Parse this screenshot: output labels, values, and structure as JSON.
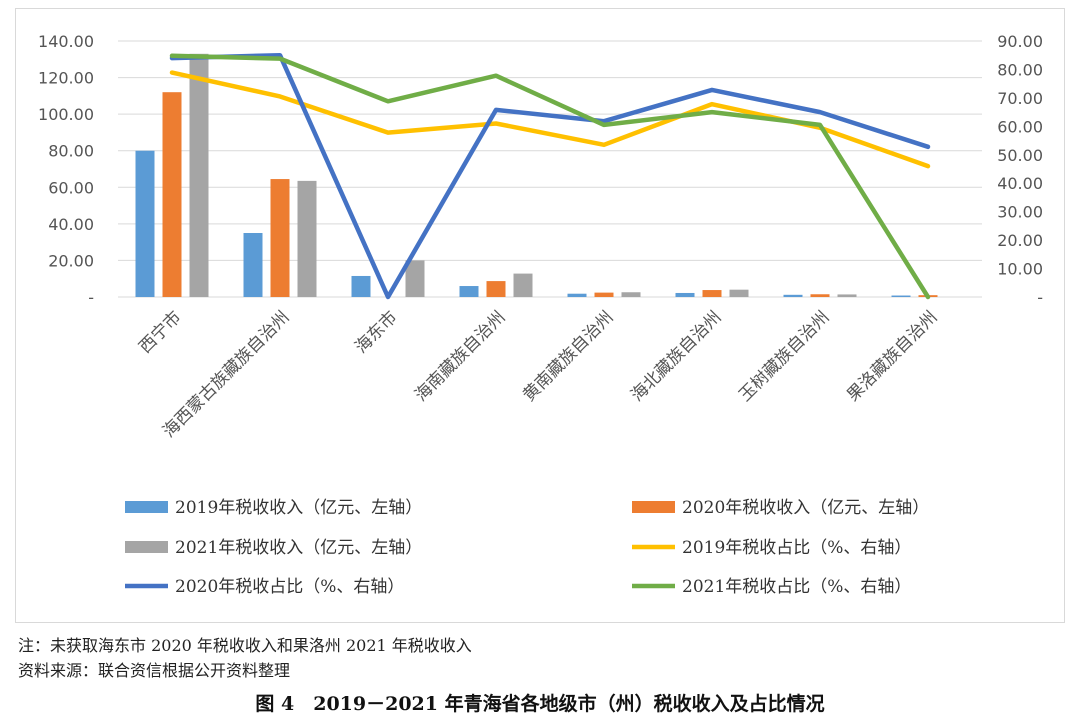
{
  "chart_data": {
    "type": "bar+line",
    "categories": [
      "西宁市",
      "海西蒙古族藏族自治州",
      "海东市",
      "海南藏族自治州",
      "黄南藏族自治州",
      "海北藏族自治州",
      "玉树藏族自治州",
      "果洛藏族自治州"
    ],
    "left_axis": {
      "ylim": [
        0,
        140
      ],
      "ticks": [
        "-",
        "20.00",
        "40.00",
        "60.00",
        "80.00",
        "100.00",
        "120.00",
        "140.00"
      ]
    },
    "right_axis": {
      "ylim": [
        0,
        90
      ],
      "ticks": [
        "-",
        "10.00",
        "20.00",
        "30.00",
        "40.00",
        "50.00",
        "60.00",
        "70.00",
        "80.00",
        "90.00"
      ]
    },
    "bar_series": [
      {
        "name": "2019年税收收入（亿元、左轴）",
        "color": "#5b9bd5",
        "values": [
          80.0,
          35.0,
          11.5,
          6.0,
          1.8,
          2.2,
          1.2,
          0.8
        ]
      },
      {
        "name": "2020年税收收入（亿元、左轴）",
        "color": "#ed7d31",
        "values": [
          112.0,
          64.5,
          null,
          8.7,
          2.4,
          3.8,
          1.5,
          1.0
        ]
      },
      {
        "name": "2021年税收收入（亿元、左轴）",
        "color": "#a5a5a5",
        "values": [
          133.0,
          63.5,
          20.0,
          12.8,
          2.6,
          4.0,
          1.4,
          null
        ]
      }
    ],
    "line_series": [
      {
        "name": "2019年税收占比（%、右轴）",
        "color": "#ffc000",
        "values": [
          78.9,
          70.5,
          57.8,
          61.0,
          53.5,
          67.8,
          59.5,
          46.0
        ]
      },
      {
        "name": "2020年税收占比（%、右轴）",
        "color": "#4472c4",
        "values": [
          84.0,
          85.0,
          0,
          65.8,
          61.8,
          72.8,
          65.0,
          52.8
        ]
      },
      {
        "name": "2021年税收占比（%、右轴）",
        "color": "#70ad47",
        "values": [
          84.8,
          83.8,
          68.8,
          77.8,
          60.5,
          65.0,
          60.5,
          0
        ]
      }
    ],
    "legend_position": "bottom",
    "grid": true
  },
  "notes": {
    "note": "注：未获取海东市 2020 年税收收入和果洛州 2021 年税收收入",
    "source": "资料来源：联合资信根据公开资料整理"
  },
  "caption": "图 4　2019－2021 年青海省各地级市（州）税收收入及占比情况"
}
